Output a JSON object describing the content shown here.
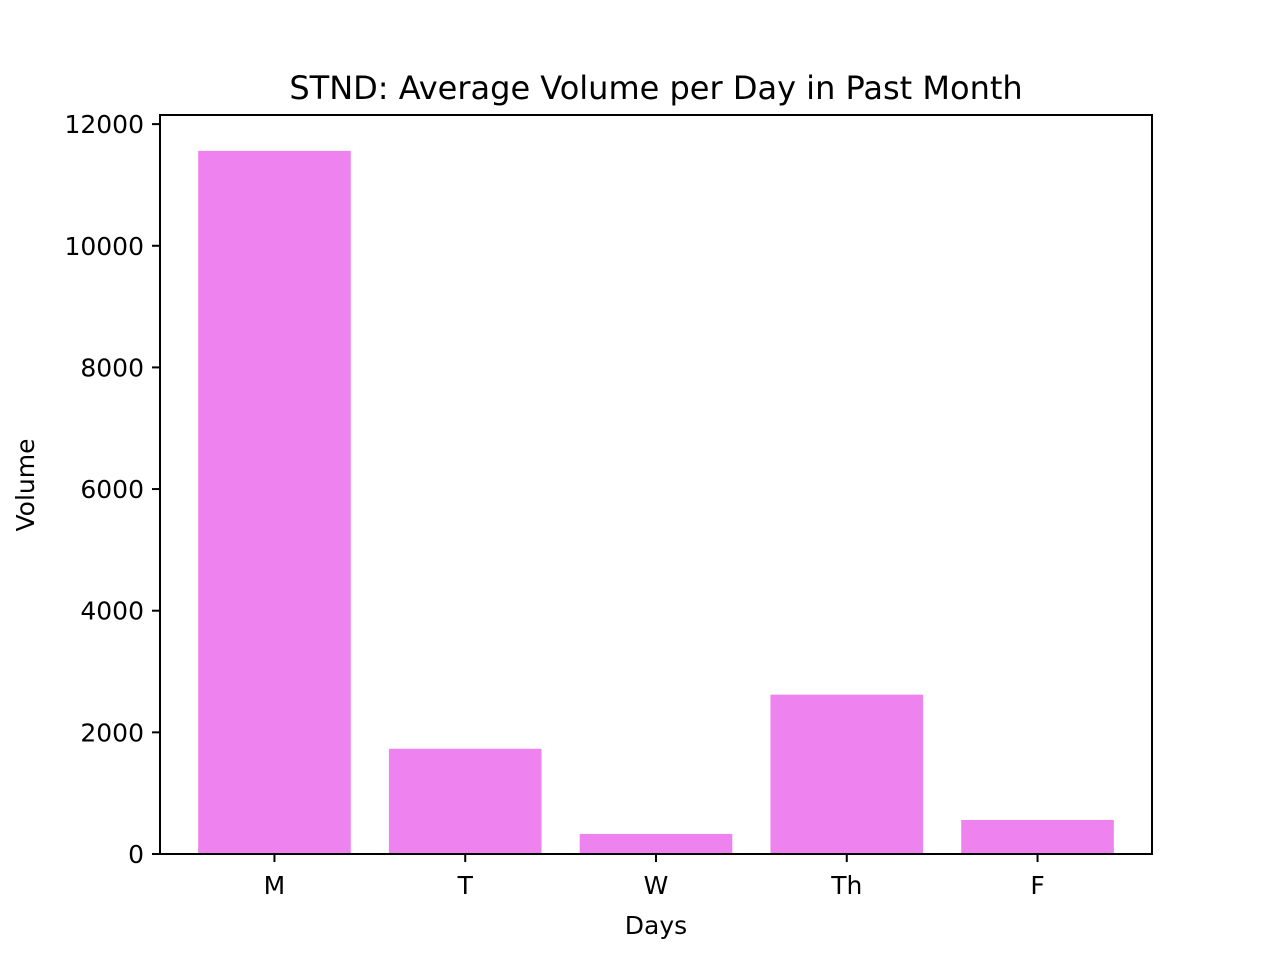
{
  "chart_data": {
    "type": "bar",
    "title": "STND: Average Volume per Day in Past Month",
    "xlabel": "Days",
    "ylabel": "Volume",
    "categories": [
      "M",
      "T",
      "W",
      "Th",
      "F"
    ],
    "values": [
      11560,
      1730,
      330,
      2620,
      560
    ],
    "ylim": [
      0,
      12150
    ],
    "yticks": [
      0,
      2000,
      4000,
      6000,
      8000,
      10000,
      12000
    ],
    "bar_color": "#ee82ee",
    "grid": false,
    "legend": "none"
  }
}
